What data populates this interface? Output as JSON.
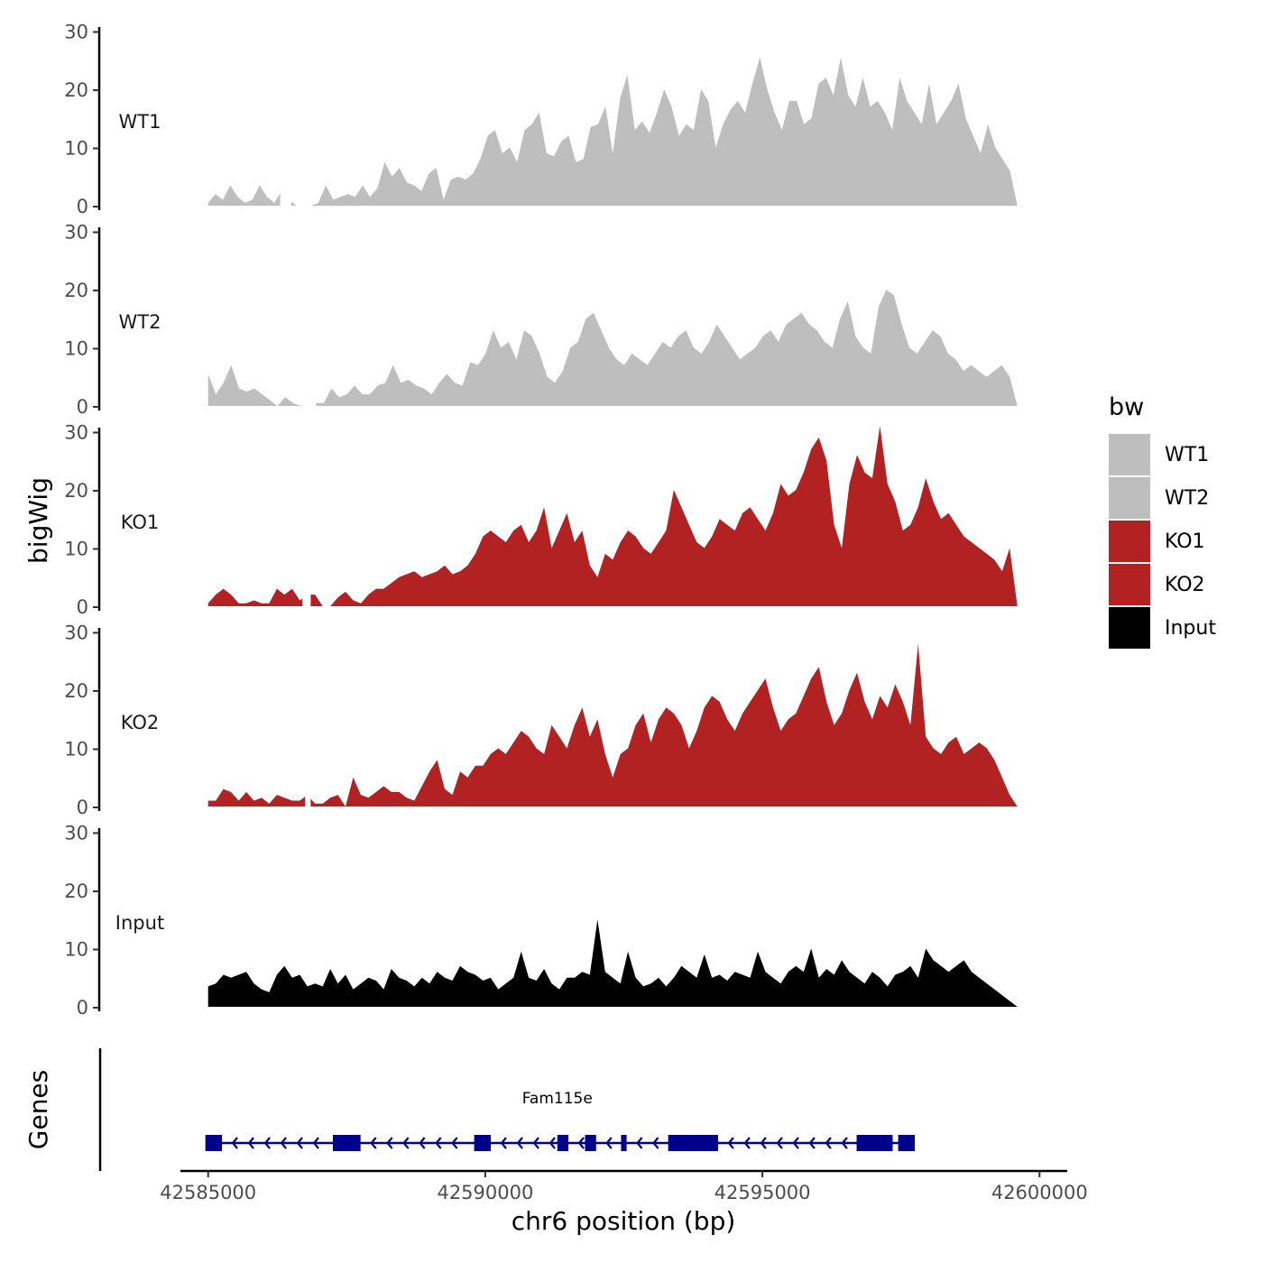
{
  "chart_data": {
    "type": "area",
    "ylabel": "bigWig",
    "xlabel": "chr6 position (bp)",
    "xlim": [
      42584500,
      42600500
    ],
    "ylim": [
      0,
      31
    ],
    "data_extent": [
      42585000,
      42599600
    ],
    "yticks": [
      {
        "value": 0,
        "label": "0"
      },
      {
        "value": 10,
        "label": "10"
      },
      {
        "value": 20,
        "label": "20"
      },
      {
        "value": 30,
        "label": "30"
      }
    ],
    "xticks": [
      {
        "value": 42585000,
        "label": "42585000"
      },
      {
        "value": 42590000,
        "label": "42590000"
      },
      {
        "value": 42595000,
        "label": "42595000"
      },
      {
        "value": 42600000,
        "label": "42600000"
      }
    ],
    "legend": {
      "title": "bw",
      "entries": [
        {
          "label": "WT1",
          "color": "#bebebe"
        },
        {
          "label": "WT2",
          "color": "#bebebe"
        },
        {
          "label": "KO1",
          "color": "#b22222"
        },
        {
          "label": "KO2",
          "color": "#b22222"
        },
        {
          "label": "Input",
          "color": "#000000"
        }
      ]
    },
    "series": [
      {
        "name": "WT1",
        "color": "#bebebe",
        "values": [
          0.5,
          2,
          1,
          3.5,
          1.5,
          0.5,
          1,
          3.5,
          1.5,
          0.5,
          2.5,
          1,
          0,
          0,
          0,
          0.5,
          3.5,
          1,
          1.5,
          2,
          1.5,
          3.5,
          1.5,
          3,
          7.5,
          5,
          6.5,
          4,
          3.5,
          2.5,
          5.5,
          6.5,
          1,
          4.5,
          5,
          4.5,
          5.5,
          8,
          12,
          13,
          9,
          10,
          7.5,
          13,
          14,
          16,
          9,
          8.5,
          11,
          12,
          7.5,
          8,
          13.5,
          14,
          17,
          9,
          18.5,
          22.5,
          13,
          14.5,
          12.5,
          16,
          20,
          17,
          12,
          14,
          13,
          20,
          18,
          10,
          14,
          16.5,
          18,
          16,
          21,
          25.5,
          20,
          16,
          13,
          18,
          18,
          14,
          15,
          21,
          22,
          19,
          25.5,
          19,
          17,
          22,
          17,
          18,
          16,
          13,
          22,
          18,
          16,
          14,
          21,
          14,
          16,
          18,
          21,
          15,
          12,
          9,
          14,
          10,
          8,
          6,
          0
        ],
        "gaps": [
          [
            42586300,
            42586500
          ]
        ]
      },
      {
        "name": "WT2",
        "color": "#bebebe",
        "values": [
          5.5,
          2,
          4,
          7,
          3,
          2.5,
          3,
          2,
          1,
          0,
          1.5,
          0.5,
          0,
          1,
          0.5,
          0.5,
          3,
          1.5,
          2,
          3.5,
          2,
          2,
          3.5,
          4,
          7,
          4,
          4.5,
          3.5,
          3,
          2,
          4,
          5.5,
          4,
          3.5,
          7.5,
          7,
          9,
          13,
          10,
          11,
          8,
          13,
          12,
          9,
          5,
          4,
          6,
          10,
          11,
          15,
          16,
          13,
          10,
          8,
          7,
          9,
          8,
          7,
          9,
          11,
          10,
          12,
          13,
          10,
          9,
          11,
          14,
          12,
          10,
          8,
          9,
          10,
          12,
          13,
          11,
          14,
          15,
          16,
          14,
          13,
          11,
          10,
          15,
          18,
          12,
          10,
          9,
          17,
          20,
          19,
          14,
          10,
          9,
          11,
          13,
          12,
          9,
          8,
          6,
          7,
          6,
          5,
          6,
          7,
          5,
          0
        ],
        "gaps": [
          [
            42586700,
            42586950
          ]
        ]
      },
      {
        "name": "KO1",
        "color": "#b22222",
        "values": [
          0.5,
          2,
          3,
          2,
          0.5,
          0.5,
          1,
          0.5,
          0.5,
          3,
          2,
          3,
          1,
          2,
          2,
          0,
          0,
          1.5,
          2.5,
          1,
          0.5,
          2,
          3,
          3,
          4,
          5,
          5.5,
          6,
          5,
          5.5,
          6,
          7,
          5.5,
          6,
          7,
          9,
          12,
          13,
          12,
          11,
          13,
          14,
          11,
          13,
          17,
          10,
          13,
          16,
          11,
          13,
          7,
          5,
          9,
          8,
          11,
          13,
          12,
          10,
          9,
          11,
          13,
          20,
          17,
          14,
          11,
          10,
          12,
          15,
          14,
          13,
          16,
          17,
          15,
          13,
          16,
          21,
          19,
          20,
          23,
          27,
          29,
          25,
          14,
          10,
          21,
          26,
          23,
          22,
          31,
          21,
          18,
          13,
          14,
          17,
          22,
          18,
          15,
          16,
          14,
          12,
          11,
          10,
          9,
          8,
          6,
          10,
          0
        ],
        "gaps": [
          [
            42586700,
            42586850
          ]
        ]
      },
      {
        "name": "KO2",
        "color": "#b22222",
        "values": [
          1,
          1,
          3,
          2.5,
          1,
          2.5,
          1,
          1.5,
          0.5,
          2,
          1.5,
          1,
          1,
          2,
          0.5,
          0.5,
          1.5,
          2,
          0,
          5,
          2,
          1.5,
          2.5,
          3.5,
          2.5,
          2.5,
          1.5,
          1,
          3.5,
          6,
          8,
          3,
          2,
          6,
          5,
          7,
          7,
          9,
          10,
          9,
          11,
          13,
          12,
          10,
          9,
          14,
          12,
          10,
          14,
          17,
          12,
          15,
          9,
          5,
          9,
          10,
          14,
          16,
          11,
          15,
          17,
          16,
          14,
          10,
          13,
          17,
          19,
          18,
          15,
          13,
          16,
          18,
          20,
          22,
          17,
          13,
          15,
          16,
          19,
          22,
          24,
          18,
          14,
          16,
          20,
          23,
          18,
          15,
          19,
          17,
          21,
          18,
          14,
          28,
          12,
          10,
          9,
          11,
          12,
          9,
          10,
          11,
          10,
          8,
          5,
          2,
          0
        ],
        "gaps": [
          [
            42586750,
            42586850
          ]
        ]
      },
      {
        "name": "Input",
        "color": "#000000",
        "values": [
          3.5,
          4,
          5.5,
          5,
          5.5,
          6,
          4,
          3,
          2.5,
          5.5,
          7,
          5,
          5.5,
          3.5,
          4,
          3.5,
          6.5,
          4,
          5.5,
          3,
          4,
          5,
          4.5,
          3,
          6.5,
          5,
          4.5,
          3.5,
          5,
          4,
          6,
          5,
          4.5,
          7,
          6,
          5.5,
          4.5,
          5,
          3,
          4,
          5,
          9.5,
          5,
          4.5,
          6.5,
          4,
          3,
          5,
          5,
          6,
          5.5,
          15,
          6,
          5,
          4,
          9.5,
          5,
          3.5,
          4,
          5,
          3.5,
          5,
          7,
          6,
          5,
          9,
          5,
          5.5,
          4.5,
          6,
          5.5,
          5,
          9.5,
          6,
          5,
          4,
          6,
          7,
          6,
          10,
          5,
          6.5,
          5.5,
          8,
          6,
          5,
          4,
          6,
          5,
          3.5,
          5.5,
          6,
          7,
          5,
          10,
          8,
          7,
          6,
          7,
          8,
          6,
          5,
          4,
          3,
          2,
          1,
          0
        ],
        "gaps": []
      }
    ],
    "genes": {
      "track_label": "Genes",
      "color": "#00008b",
      "items": [
        {
          "name": "Fam115e",
          "label_position": 42591300,
          "start": 42585000,
          "end": 42597700,
          "strand": "-",
          "exons": [
            [
              42584950,
              42585250
            ],
            [
              42587250,
              42587750
            ],
            [
              42589800,
              42590100
            ],
            [
              42591300,
              42591500
            ],
            [
              42591800,
              42592000
            ],
            [
              42592450,
              42592550
            ],
            [
              42593300,
              42594200
            ],
            [
              42596700,
              42597350
            ],
            [
              42597450,
              42597750
            ]
          ]
        }
      ]
    }
  }
}
